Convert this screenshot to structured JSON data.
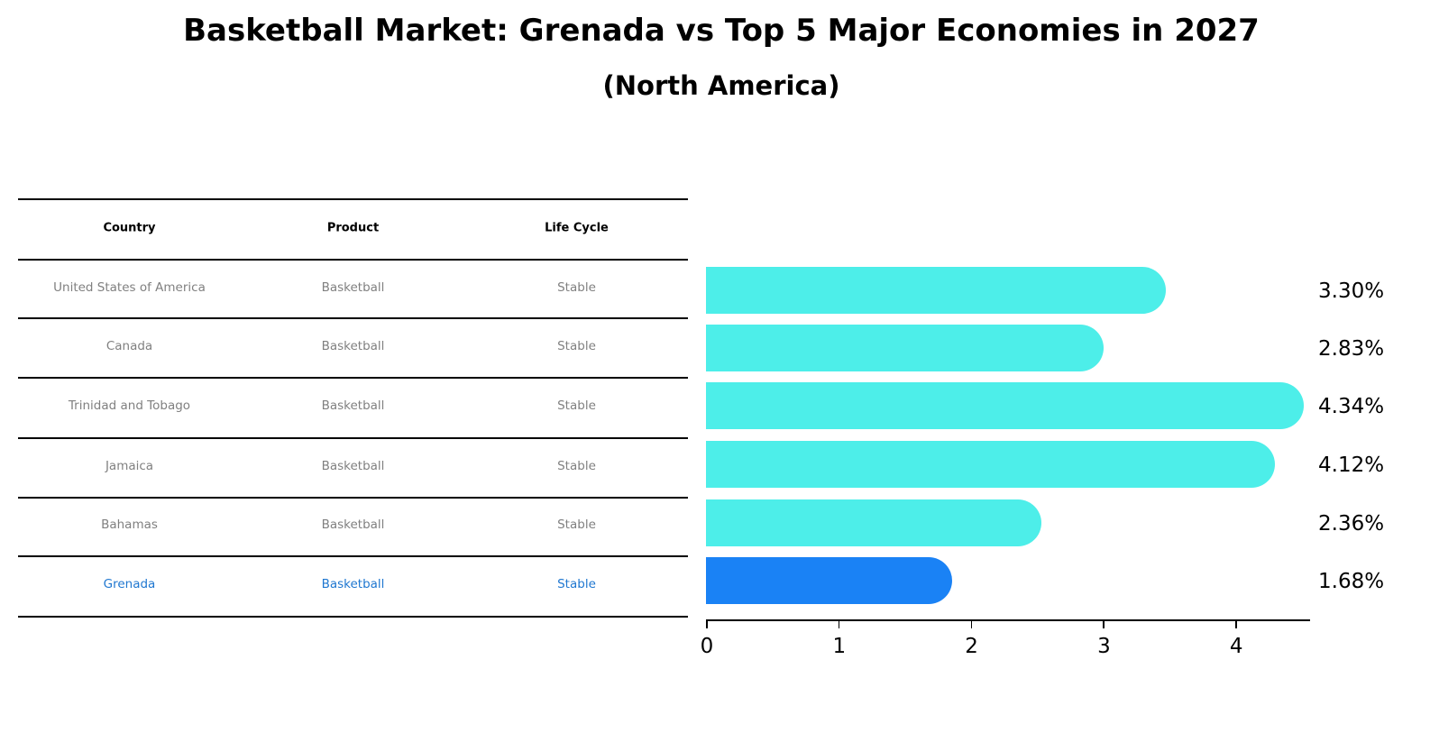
{
  "header": {
    "title": "Basketball Market: Grenada vs Top 5 Major Economies in 2027",
    "subtitle": "(North America)"
  },
  "table": {
    "columns": [
      "Country",
      "Product",
      "Life Cycle"
    ],
    "rows": [
      [
        "United States of America",
        "Basketball",
        "Stable"
      ],
      [
        "Canada",
        "Basketball",
        "Stable"
      ],
      [
        "Trinidad and Tobago",
        "Basketball",
        "Stable"
      ],
      [
        "Jamaica",
        "Basketball",
        "Stable"
      ],
      [
        "Bahamas",
        "Basketball",
        "Stable"
      ],
      [
        "Grenada",
        "Basketball",
        "Stable"
      ]
    ],
    "highlight_row": 5
  },
  "colors": {
    "bar": "#4deee9",
    "highlight_bar": "#1a82f5",
    "highlight_text": "#1f77d0",
    "cell_text": "#808080"
  },
  "chart_data": {
    "type": "bar",
    "orientation": "horizontal",
    "title": "Basketball Market: Grenada vs Top 5 Major Economies in 2027",
    "subtitle": "(North America)",
    "categories": [
      "United States of America",
      "Canada",
      "Trinidad and Tobago",
      "Jamaica",
      "Bahamas",
      "Grenada"
    ],
    "values": [
      3.3,
      2.83,
      4.34,
      4.12,
      2.36,
      1.68
    ],
    "value_labels": [
      "3.30%",
      "2.83%",
      "4.34%",
      "4.12%",
      "2.36%",
      "1.68%"
    ],
    "xlabel": "",
    "ylabel": "",
    "xticks": [
      "0",
      "1",
      "2",
      "3",
      "4"
    ],
    "xlim": [
      0,
      4.56
    ],
    "grid": false,
    "legend": null,
    "highlight": "Grenada"
  }
}
